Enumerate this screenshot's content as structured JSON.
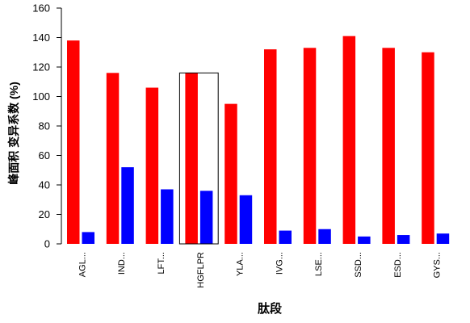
{
  "chart_data": {
    "type": "bar",
    "title": "",
    "xlabel": "肽段",
    "ylabel": "峰面积 变异系数 (%)",
    "ylim": [
      0,
      160
    ],
    "yticks": [
      0,
      20,
      40,
      60,
      80,
      100,
      120,
      140,
      160
    ],
    "grid": false,
    "legend": "none",
    "categories": [
      "AGL...",
      "IND...",
      "LFT...",
      "HGFLPR",
      "YLA...",
      "IVG...",
      "LSE...",
      "SSD...",
      "ESD...",
      "GYS..."
    ],
    "series": [
      {
        "color": "#ff0000",
        "values": [
          138,
          116,
          106,
          116,
          95,
          132,
          133,
          141,
          133,
          130
        ]
      },
      {
        "color": "#0000ff",
        "values": [
          8,
          52,
          37,
          36,
          33,
          9,
          10,
          5,
          6,
          7
        ]
      }
    ],
    "highlighted_category": "HGFLPR"
  }
}
